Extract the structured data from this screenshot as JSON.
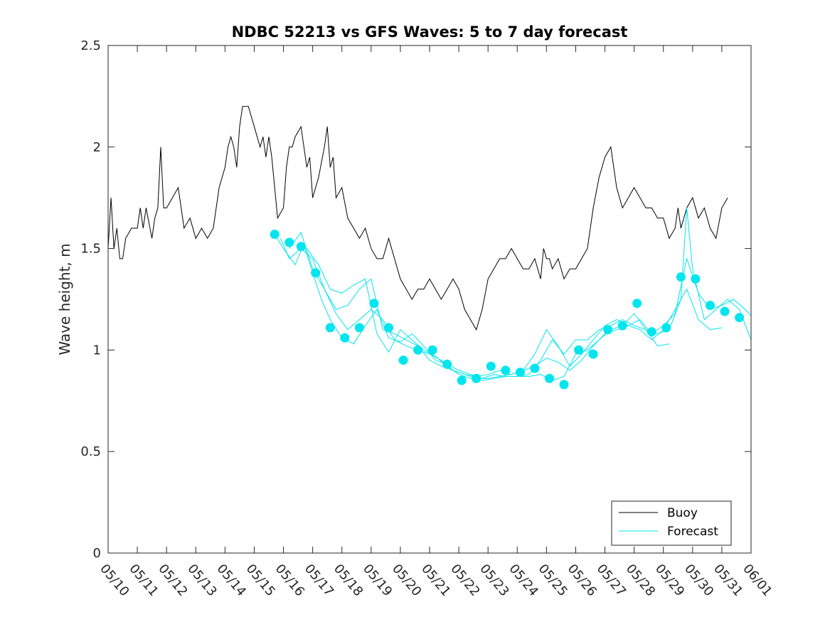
{
  "chart_data": {
    "type": "line",
    "title": "NDBC 52213 vs GFS Waves: 5 to 7 day forecast",
    "xlabel": "",
    "ylabel": "Wave height, m",
    "xlim": [
      "05/10",
      "06/01"
    ],
    "ylim": [
      0,
      2.5
    ],
    "y_ticks": [
      "0",
      "0.5",
      "1",
      "1.5",
      "2",
      "2.5"
    ],
    "x_tick_labels": [
      "05/10",
      "05/11",
      "05/12",
      "05/13",
      "05/14",
      "05/15",
      "05/16",
      "05/17",
      "05/18",
      "05/19",
      "05/20",
      "05/21",
      "05/22",
      "05/23",
      "05/24",
      "05/25",
      "05/26",
      "05/27",
      "05/28",
      "05/29",
      "05/30",
      "05/31",
      "06/01"
    ],
    "grid": false,
    "legend_position": "bottom-right",
    "colors": {
      "buoy": "#000000",
      "forecast": "#00e5ee"
    },
    "series": [
      {
        "name": "Buoy",
        "style": "line",
        "x_days": [
          0,
          0.1,
          0.2,
          0.3,
          0.4,
          0.5,
          0.6,
          0.8,
          1.0,
          1.1,
          1.2,
          1.3,
          1.5,
          1.6,
          1.7,
          1.8,
          1.9,
          2.0,
          2.2,
          2.4,
          2.6,
          2.8,
          3.0,
          3.2,
          3.4,
          3.6,
          3.8,
          4.0,
          4.1,
          4.2,
          4.3,
          4.4,
          4.5,
          4.6,
          4.8,
          5.0,
          5.2,
          5.3,
          5.4,
          5.5,
          5.6,
          5.8,
          6.0,
          6.1,
          6.2,
          6.3,
          6.4,
          6.6,
          6.8,
          6.9,
          7.0,
          7.2,
          7.4,
          7.5,
          7.6,
          7.7,
          7.8,
          8.0,
          8.2,
          8.4,
          8.6,
          8.8,
          9.0,
          9.2,
          9.4,
          9.6,
          9.8,
          10.0,
          10.2,
          10.4,
          10.6,
          10.8,
          11.0,
          11.2,
          11.4,
          11.6,
          11.8,
          12.0,
          12.2,
          12.4,
          12.6,
          12.8,
          13.0,
          13.2,
          13.4,
          13.6,
          13.8,
          14.0,
          14.2,
          14.4,
          14.6,
          14.8,
          14.9,
          15.0,
          15.1,
          15.2,
          15.4,
          15.6,
          15.8,
          16.0,
          16.2,
          16.4,
          16.6,
          16.8,
          17.0,
          17.2,
          17.4,
          17.6,
          17.8,
          18.0,
          18.2,
          18.4,
          18.6,
          18.8,
          19.0,
          19.2,
          19.4,
          19.5,
          19.6,
          19.8,
          20.0,
          20.2,
          20.4,
          20.6,
          20.8,
          21.0,
          21.2
        ],
        "values": [
          1.5,
          1.75,
          1.5,
          1.6,
          1.45,
          1.45,
          1.55,
          1.6,
          1.6,
          1.7,
          1.6,
          1.7,
          1.55,
          1.65,
          1.7,
          2.0,
          1.7,
          1.7,
          1.75,
          1.8,
          1.6,
          1.65,
          1.55,
          1.6,
          1.55,
          1.6,
          1.8,
          1.9,
          2.0,
          2.05,
          2.0,
          1.9,
          2.1,
          2.2,
          2.2,
          2.1,
          2.0,
          2.05,
          1.95,
          2.05,
          1.95,
          1.65,
          1.7,
          1.9,
          2.0,
          2.0,
          2.05,
          2.1,
          1.9,
          1.95,
          1.75,
          1.85,
          2.0,
          2.1,
          1.9,
          1.95,
          1.75,
          1.8,
          1.65,
          1.6,
          1.55,
          1.6,
          1.5,
          1.45,
          1.45,
          1.55,
          1.45,
          1.35,
          1.3,
          1.25,
          1.3,
          1.3,
          1.35,
          1.3,
          1.25,
          1.3,
          1.35,
          1.3,
          1.2,
          1.15,
          1.1,
          1.2,
          1.35,
          1.4,
          1.45,
          1.45,
          1.5,
          1.45,
          1.4,
          1.4,
          1.45,
          1.35,
          1.5,
          1.45,
          1.45,
          1.4,
          1.45,
          1.35,
          1.4,
          1.4,
          1.45,
          1.5,
          1.7,
          1.85,
          1.95,
          2.0,
          1.8,
          1.7,
          1.75,
          1.8,
          1.75,
          1.7,
          1.7,
          1.65,
          1.65,
          1.55,
          1.6,
          1.7,
          1.6,
          1.7,
          1.75,
          1.65,
          1.7,
          1.6,
          1.55,
          1.7,
          1.75
        ]
      },
      {
        "name": "Forecast",
        "style": "points",
        "x_days": [
          5.7,
          6.2,
          6.6,
          7.1,
          7.6,
          8.1,
          8.6,
          9.1,
          9.6,
          10.1,
          10.6,
          11.1,
          11.6,
          12.1,
          12.6,
          13.1,
          13.6,
          14.1,
          14.6,
          15.1,
          15.6,
          16.1,
          16.6,
          17.1,
          17.6,
          18.1,
          18.6,
          19.1,
          19.6,
          20.1,
          20.6,
          21.1,
          21.6
        ],
        "values": [
          1.57,
          1.53,
          1.51,
          1.38,
          1.11,
          1.06,
          1.11,
          1.23,
          1.11,
          0.95,
          1.0,
          1.0,
          0.93,
          0.85,
          0.86,
          0.92,
          0.9,
          0.89,
          0.91,
          0.86,
          0.83,
          1.0,
          0.98,
          1.1,
          1.12,
          1.23,
          1.09,
          1.11,
          1.36,
          1.35,
          1.22,
          1.19,
          1.16
        ]
      },
      {
        "name": "",
        "style": "line",
        "x_days": [
          5.7,
          6.0,
          6.4,
          6.7,
          7.0,
          7.3,
          7.6,
          8.0,
          8.4,
          8.8,
          9.2,
          9.6,
          10.0,
          10.4,
          10.8,
          11.2,
          11.6,
          12.0,
          12.4,
          12.8,
          13.2,
          13.6,
          14.0,
          14.4,
          14.8,
          15.2,
          15.6,
          16.0,
          16.4,
          16.8,
          17.2,
          17.6,
          18.0,
          18.4,
          18.8,
          19.2,
          19.6,
          19.8,
          20.0,
          20.4,
          20.8,
          21.2,
          21.6,
          22.0
        ],
        "values": [
          1.57,
          1.5,
          1.42,
          1.52,
          1.38,
          1.25,
          1.15,
          1.06,
          1.03,
          1.12,
          1.2,
          1.06,
          1.04,
          1.08,
          1.02,
          0.95,
          0.93,
          0.9,
          0.88,
          0.86,
          0.88,
          0.87,
          0.87,
          0.88,
          0.95,
          1.05,
          0.98,
          1.05,
          1.05,
          1.1,
          1.12,
          1.15,
          1.12,
          1.1,
          1.08,
          1.1,
          1.25,
          1.7,
          1.4,
          1.15,
          1.2,
          1.25,
          1.2,
          1.05
        ]
      },
      {
        "name": "",
        "style": "line",
        "x_days": [
          5.9,
          6.2,
          6.6,
          7.0,
          7.4,
          7.8,
          8.2,
          8.6,
          9.0,
          9.4,
          9.8,
          10.2,
          10.6,
          11.0,
          11.4,
          11.8,
          12.2,
          12.6,
          13.0,
          13.4,
          13.8,
          14.2,
          14.6,
          15.0,
          15.4,
          15.8,
          16.2,
          16.6,
          17.0,
          17.4,
          17.8,
          18.2,
          18.6,
          19.0,
          19.4,
          19.8,
          20.2,
          20.6,
          21.0,
          21.4,
          21.8,
          22.0
        ],
        "values": [
          1.55,
          1.45,
          1.5,
          1.45,
          1.3,
          1.18,
          1.1,
          1.15,
          1.2,
          1.15,
          1.05,
          1.02,
          1.0,
          0.98,
          0.95,
          0.9,
          0.88,
          0.87,
          0.88,
          0.9,
          0.88,
          0.9,
          0.92,
          0.96,
          0.94,
          0.9,
          0.95,
          1.02,
          1.08,
          1.1,
          1.12,
          1.15,
          1.08,
          1.12,
          1.18,
          1.45,
          1.28,
          1.2,
          1.22,
          1.25,
          1.2,
          1.17
        ]
      },
      {
        "name": "",
        "style": "line",
        "x_days": [
          6.2,
          6.6,
          7.0,
          7.4,
          7.8,
          8.2,
          8.6,
          9.0,
          9.4,
          9.8,
          10.2,
          10.6,
          11.0,
          11.4,
          11.8,
          12.2,
          12.6,
          13.0,
          13.4,
          13.8,
          14.2,
          14.6,
          15.0,
          15.4,
          15.8,
          16.2,
          16.6,
          17.0,
          17.4,
          17.8,
          18.2,
          18.6,
          19.0,
          19.4,
          19.8,
          20.2,
          20.6,
          21.0
        ],
        "values": [
          1.5,
          1.58,
          1.4,
          1.3,
          1.2,
          1.22,
          1.3,
          1.35,
          1.1,
          1.08,
          1.05,
          1.02,
          0.95,
          0.92,
          0.9,
          0.88,
          0.86,
          0.86,
          0.87,
          0.88,
          0.9,
          0.98,
          1.1,
          1.02,
          0.92,
          0.98,
          1.05,
          1.12,
          1.15,
          1.12,
          1.1,
          1.05,
          1.1,
          1.2,
          1.3,
          1.15,
          1.1,
          1.11
        ]
      },
      {
        "name": "",
        "style": "line",
        "x_days": [
          6.8,
          7.2,
          7.6,
          8.0,
          8.4,
          8.8,
          9.2,
          9.6,
          10.0,
          10.4,
          10.8,
          11.2,
          11.6,
          12.0,
          12.4,
          12.8,
          13.2,
          13.6,
          14.0,
          14.4,
          14.8,
          15.2,
          15.6,
          16.0,
          16.4,
          16.8,
          17.2,
          17.6,
          18.0,
          18.4,
          18.8,
          19.2
        ],
        "values": [
          1.5,
          1.42,
          1.3,
          1.28,
          1.32,
          1.35,
          1.08,
          0.99,
          1.1,
          1.05,
          1.0,
          0.97,
          0.92,
          0.88,
          0.86,
          0.85,
          0.86,
          0.87,
          0.87,
          0.87,
          0.88,
          0.85,
          0.87,
          0.98,
          1.0,
          1.05,
          1.1,
          1.12,
          1.18,
          1.1,
          1.02,
          1.03
        ]
      }
    ]
  },
  "legend": {
    "items": [
      {
        "label": "Buoy",
        "color": "#000000"
      },
      {
        "label": "Forecast",
        "color": "#00e5ee"
      }
    ]
  }
}
